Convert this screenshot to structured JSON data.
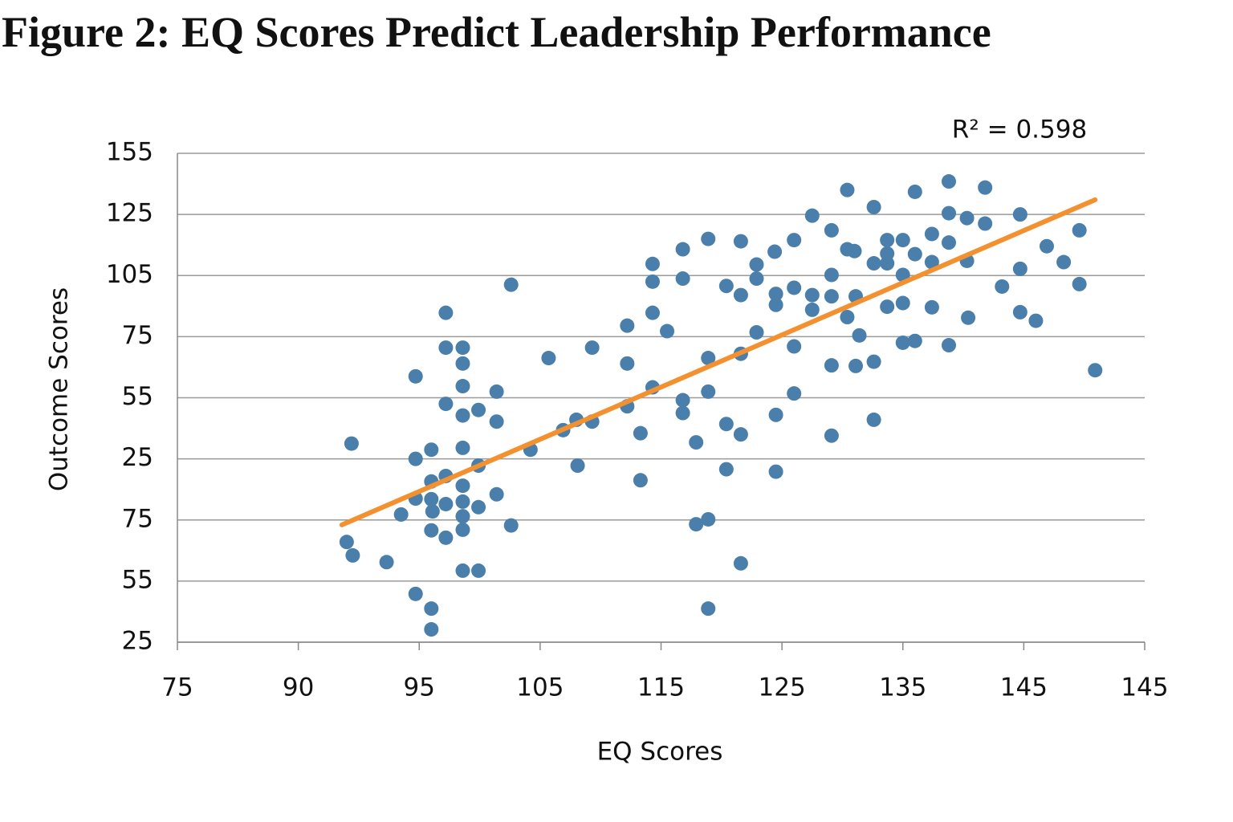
{
  "chart_data": {
    "type": "scatter",
    "title": "Figure 2: EQ Scores Predict Leadership Performance",
    "x_label": "EQ Scores",
    "y_label": "Outcome Scores",
    "annotation": "R² = 0.598",
    "xlim": [
      0,
      8
    ],
    "ylim": [
      0,
      8
    ],
    "xticks": [
      {
        "value": 0,
        "label": "75"
      },
      {
        "value": 1,
        "label": "90"
      },
      {
        "value": 2,
        "label": "95"
      },
      {
        "value": 3,
        "label": "105"
      },
      {
        "value": 4,
        "label": "115"
      },
      {
        "value": 5,
        "label": "125"
      },
      {
        "value": 6,
        "label": "135"
      },
      {
        "value": 7,
        "label": "145"
      },
      {
        "value": 8,
        "label": "145"
      }
    ],
    "yticks": [
      {
        "value": 0,
        "label": "25"
      },
      {
        "value": 1,
        "label": "55"
      },
      {
        "value": 2,
        "label": "75"
      },
      {
        "value": 3,
        "label": "25"
      },
      {
        "value": 4,
        "label": "55"
      },
      {
        "value": 5,
        "label": "75"
      },
      {
        "value": 6,
        "label": "105"
      },
      {
        "value": 7,
        "label": "125"
      },
      {
        "value": 8,
        "label": "155"
      }
    ],
    "grid": true,
    "series": [
      {
        "color": "#4a7eab",
        "x": [
          1.4,
          1.44,
          1.45,
          1.73,
          1.85,
          1.97,
          1.97,
          1.97,
          1.97,
          2.1,
          2.1,
          2.1,
          2.11,
          2.1,
          2.1,
          2.1,
          2.22,
          2.22,
          2.22,
          2.22,
          2.22,
          2.22,
          2.36,
          2.36,
          2.36,
          2.36,
          2.36,
          2.36,
          2.36,
          2.36,
          2.36,
          2.36,
          2.49,
          2.49,
          2.49,
          2.49,
          2.64,
          2.64,
          2.64,
          2.76,
          2.76,
          2.92,
          3.07,
          3.19,
          3.3,
          3.31,
          3.43,
          3.43,
          3.72,
          3.72,
          3.72,
          3.83,
          3.83,
          3.93,
          3.93,
          3.93,
          3.93,
          4.05,
          4.18,
          4.18,
          4.18,
          4.18,
          4.29,
          4.29,
          4.39,
          4.39,
          4.39,
          4.39,
          4.39,
          4.54,
          4.54,
          4.54,
          4.66,
          4.66,
          4.66,
          4.66,
          4.66,
          4.79,
          4.79,
          4.79,
          4.94,
          4.95,
          4.95,
          4.95,
          4.95,
          5.1,
          5.1,
          5.1,
          5.1,
          5.25,
          5.25,
          5.25,
          5.41,
          5.41,
          5.41,
          5.41,
          5.41,
          5.54,
          5.54,
          5.54,
          5.6,
          5.61,
          5.61,
          5.64,
          5.76,
          5.76,
          5.76,
          5.76,
          5.87,
          5.87,
          5.87,
          5.87,
          6.0,
          6.0,
          6.0,
          6.0,
          6.1,
          6.1,
          6.1,
          6.24,
          6.24,
          6.24,
          6.38,
          6.38,
          6.38,
          6.38,
          6.53,
          6.53,
          6.54,
          6.68,
          6.68,
          6.82,
          6.97,
          6.97,
          6.97,
          7.1,
          7.19,
          7.33,
          7.46,
          7.46,
          7.59
        ],
        "values": [
          1.64,
          3.25,
          1.42,
          1.31,
          2.09,
          4.35,
          3.0,
          2.35,
          0.79,
          3.15,
          2.63,
          2.34,
          2.14,
          1.83,
          0.55,
          0.21,
          5.39,
          4.82,
          3.9,
          2.72,
          2.26,
          1.71,
          4.82,
          4.56,
          4.19,
          3.71,
          3.18,
          2.56,
          2.3,
          2.06,
          1.84,
          1.17,
          3.8,
          2.89,
          2.21,
          1.17,
          4.1,
          3.61,
          2.42,
          5.85,
          1.91,
          3.15,
          4.65,
          3.47,
          3.64,
          2.89,
          3.61,
          4.82,
          5.18,
          4.56,
          3.86,
          3.42,
          2.65,
          6.19,
          5.9,
          5.39,
          4.17,
          5.09,
          6.43,
          5.95,
          3.96,
          3.75,
          3.27,
          1.93,
          6.6,
          4.65,
          4.1,
          2.01,
          0.55,
          5.83,
          3.57,
          2.83,
          6.56,
          5.68,
          4.72,
          3.4,
          1.29,
          6.18,
          5.95,
          5.07,
          6.39,
          5.7,
          5.52,
          3.72,
          2.79,
          6.58,
          5.8,
          4.84,
          4.07,
          6.98,
          5.68,
          5.44,
          6.74,
          6.01,
          5.66,
          4.53,
          3.38,
          7.4,
          6.43,
          5.32,
          6.4,
          5.66,
          4.52,
          5.02,
          7.12,
          6.2,
          4.59,
          3.64,
          6.58,
          6.36,
          6.2,
          5.49,
          6.58,
          6.01,
          5.55,
          4.9,
          7.37,
          6.35,
          4.93,
          6.68,
          6.22,
          5.48,
          7.54,
          7.02,
          6.54,
          4.86,
          6.94,
          6.24,
          5.31,
          7.44,
          6.85,
          5.82,
          7.0,
          6.11,
          5.4,
          5.26,
          6.48,
          6.22,
          6.74,
          5.86,
          4.45
        ]
      }
    ],
    "trendline": {
      "color": "#f39130",
      "x": [
        1.36,
        7.59
      ],
      "y": [
        1.92,
        7.24
      ]
    }
  }
}
